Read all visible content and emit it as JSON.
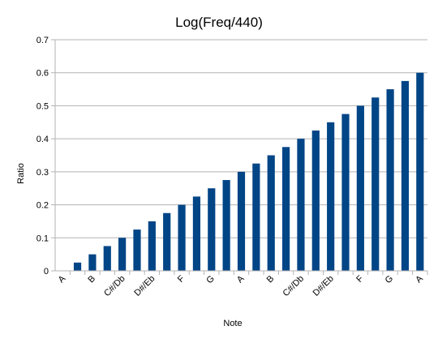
{
  "chart_data": {
    "type": "bar",
    "title": "Log(Freq/440)",
    "xlabel": "Note",
    "ylabel": "Ratio",
    "ylim": [
      0,
      0.7
    ],
    "yticks": [
      "0",
      "0.1",
      "0.2",
      "0.3",
      "0.4",
      "0.5",
      "0.6",
      "0.7"
    ],
    "grid": "horizontal",
    "bar_color": "#004586",
    "categories": [
      "A",
      "",
      "B",
      "",
      "C#/Db",
      "",
      "D#/Eb",
      "",
      "F",
      "",
      "G",
      "",
      "A",
      "",
      "B",
      "",
      "C#/Db",
      "",
      "D#/Eb",
      "",
      "F",
      "",
      "G",
      "",
      "A"
    ],
    "values": [
      0,
      0.025,
      0.05,
      0.075,
      0.1,
      0.125,
      0.15,
      0.175,
      0.2,
      0.225,
      0.25,
      0.275,
      0.3,
      0.325,
      0.35,
      0.375,
      0.4,
      0.425,
      0.45,
      0.475,
      0.5,
      0.525,
      0.55,
      0.575,
      0.6
    ]
  }
}
